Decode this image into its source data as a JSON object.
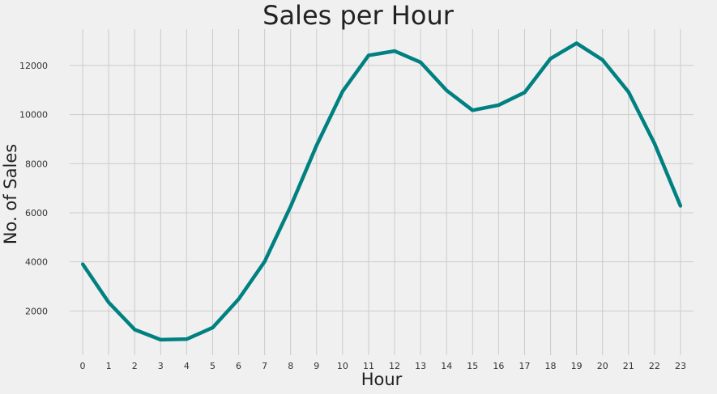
{
  "chart_data": {
    "type": "line",
    "title": "Sales per Hour",
    "xlabel": "Hour",
    "ylabel": "No. of Sales",
    "x": [
      0,
      1,
      2,
      3,
      4,
      5,
      6,
      7,
      8,
      9,
      10,
      11,
      12,
      13,
      14,
      15,
      16,
      17,
      18,
      19,
      20,
      21,
      22,
      23
    ],
    "series": [
      {
        "values": [
          3910,
          2350,
          1243,
          831,
          854,
          1321,
          2482,
          4011,
          6256,
          8748,
          10944,
          12411,
          12587,
          12129,
          10984,
          10175,
          10384,
          10899,
          12280,
          12905,
          12228,
          10921,
          8822,
          6275
        ],
        "color": "#008080"
      }
    ],
    "xticks": [
      "0",
      "1",
      "2",
      "3",
      "4",
      "5",
      "6",
      "7",
      "8",
      "9",
      "10",
      "11",
      "12",
      "13",
      "14",
      "15",
      "16",
      "17",
      "18",
      "19",
      "20",
      "21",
      "22",
      "23"
    ],
    "yticks": [
      2000,
      4000,
      6000,
      8000,
      10000,
      12000
    ],
    "ylim": [
      200,
      13480
    ],
    "grid": true,
    "background": "#f0f0f0"
  }
}
